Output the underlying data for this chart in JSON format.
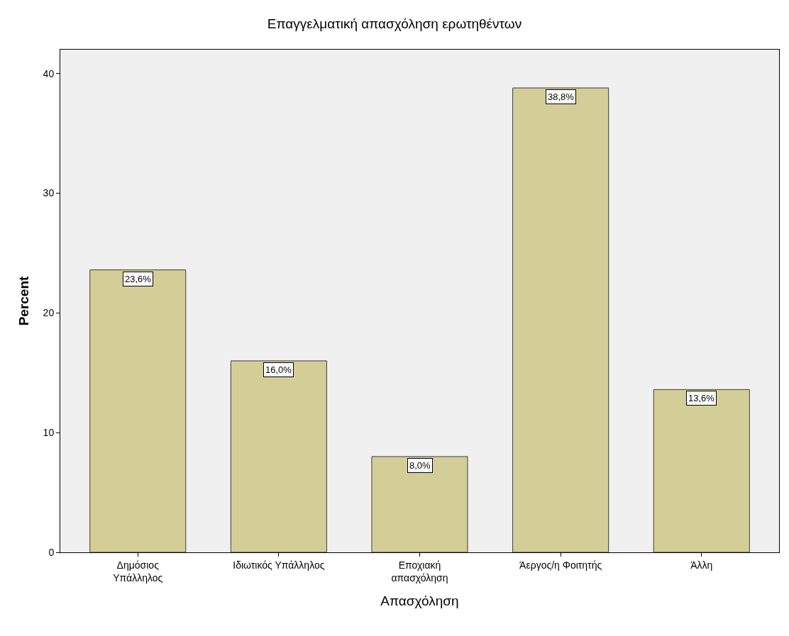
{
  "chart_data": {
    "type": "bar",
    "title": "Επαγγελματική απασχόληση ερωτηθέντων",
    "xlabel": "Απασχόληση",
    "ylabel": "Percent",
    "categories": [
      "Δημόσιος\nΥπάλληλος",
      "Ιδιωτικός Υπάλληλος",
      "Εποχιακή\nαπασχόληση",
      "Άεργος/η Φοιτητής",
      "Άλλη"
    ],
    "values": [
      23.6,
      16.0,
      8.0,
      38.8,
      13.6
    ],
    "value_labels": [
      "23,6%",
      "16,0%",
      "8,0%",
      "38,8%",
      "13,6%"
    ],
    "color": "#d3ce97",
    "ylim": [
      0,
      42
    ],
    "yticks": [
      0,
      10,
      20,
      30,
      40
    ],
    "grid": false,
    "legend": false
  }
}
